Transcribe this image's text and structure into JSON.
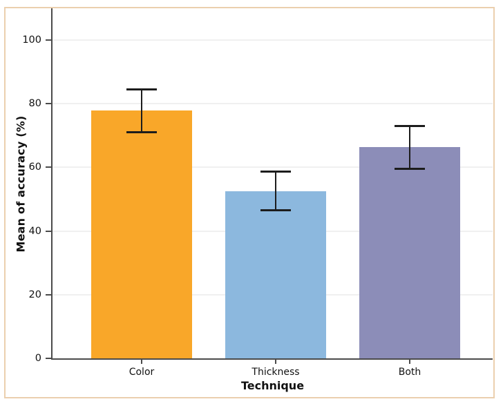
{
  "chart_data": {
    "type": "bar",
    "title": "",
    "categories": [
      "Color",
      "Thickness",
      "Both"
    ],
    "values": [
      78,
      52.5,
      66.5
    ],
    "error_bars": {
      "upper": [
        84.5,
        58.5,
        73
      ],
      "lower": [
        71,
        46.5,
        59.5
      ]
    },
    "bar_colors": [
      "#f9a729",
      "#8cb8de",
      "#8c8db8"
    ],
    "xlabel": "Technique",
    "ylabel": "Mean of accuracy (%)",
    "y_ticks": [
      0,
      20,
      40,
      60,
      80,
      100
    ],
    "ylim": [
      0,
      110
    ],
    "grid": {
      "horizontal": true,
      "vertical": false,
      "color": "#f0f0f0"
    },
    "legend_position": "none"
  },
  "styles": {
    "frame_border_color": "#ebcfae",
    "axis_color": "#4a4a4a",
    "error_bar_color": "#1c1c1c",
    "background_color": "#ffffff",
    "text_color": "#111111"
  }
}
